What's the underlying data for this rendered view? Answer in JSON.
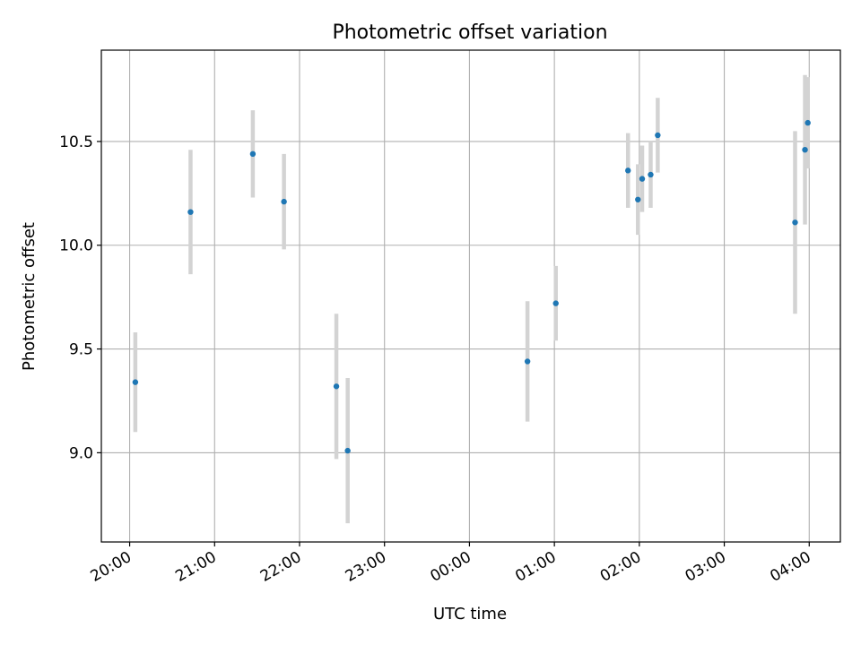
{
  "chart_data": {
    "type": "scatter",
    "title": "Photometric offset variation",
    "xlabel": "UTC time",
    "ylabel": "Photometric offset",
    "x_is_time": true,
    "x_unit": "hours",
    "xlim": [
      "19:40",
      "04:22"
    ],
    "ylim": [
      8.57,
      10.94
    ],
    "x_ticks": [
      "20:00",
      "21:00",
      "22:00",
      "23:00",
      "00:00",
      "01:00",
      "02:00",
      "03:00",
      "04:00"
    ],
    "y_ticks": [
      9.0,
      9.5,
      10.0,
      10.5
    ],
    "y_tick_labels": [
      "9.0",
      "9.5",
      "10.0",
      "10.5"
    ],
    "grid": true,
    "series": [
      {
        "errorbar_color": "#d3d3d3",
        "marker_color": "#1f77b4",
        "points": [
          {
            "x": "20:04",
            "y": 9.34,
            "err": 0.24
          },
          {
            "x": "20:43",
            "y": 10.16,
            "err": 0.3
          },
          {
            "x": "21:27",
            "y": 10.44,
            "err": 0.21
          },
          {
            "x": "21:49",
            "y": 10.21,
            "err": 0.23
          },
          {
            "x": "22:26",
            "y": 9.32,
            "err": 0.35
          },
          {
            "x": "22:34",
            "y": 9.01,
            "err": 0.35
          },
          {
            "x": "00:41",
            "y": 9.44,
            "err": 0.29
          },
          {
            "x": "01:01",
            "y": 9.72,
            "err": 0.18
          },
          {
            "x": "01:52",
            "y": 10.36,
            "err": 0.18
          },
          {
            "x": "01:59",
            "y": 10.22,
            "err": 0.17
          },
          {
            "x": "02:02",
            "y": 10.32,
            "err": 0.16
          },
          {
            "x": "02:08",
            "y": 10.34,
            "err": 0.16
          },
          {
            "x": "02:13",
            "y": 10.53,
            "err": 0.18
          },
          {
            "x": "03:50",
            "y": 10.11,
            "err": 0.44
          },
          {
            "x": "03:57",
            "y": 10.46,
            "err": 0.36
          },
          {
            "x": "03:59",
            "y": 10.59,
            "err": 0.22
          }
        ]
      }
    ]
  }
}
